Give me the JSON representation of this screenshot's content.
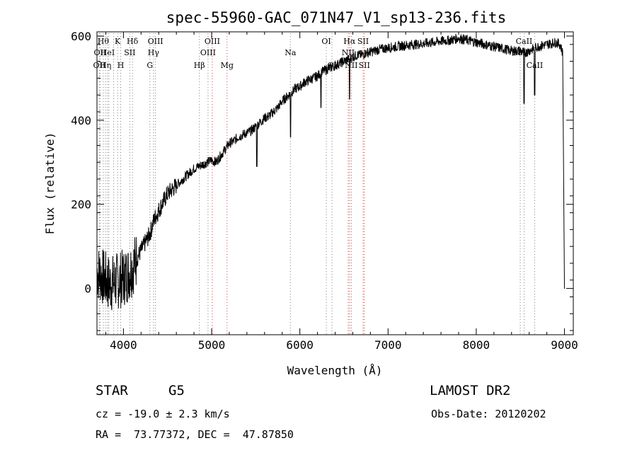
{
  "chart_data": {
    "type": "line",
    "title": "spec-55960-GAC_071N47_V1_sp13-236.fits",
    "xlabel": "Wavelength (Å)",
    "ylabel": "Flux (relative)",
    "xlim": [
      3700,
      9100
    ],
    "ylim": [
      -110,
      610
    ],
    "xticks": [
      4000,
      5000,
      6000,
      7000,
      8000,
      9000
    ],
    "yticks": [
      0,
      200,
      400,
      600
    ],
    "grid": false,
    "series": [
      {
        "color": "#000000",
        "x": [
          3700,
          3750,
          3800,
          3850,
          3900,
          3950,
          4000,
          4050,
          4100,
          4150,
          4200,
          4250,
          4300,
          4350,
          4400,
          4450,
          4500,
          4550,
          4600,
          4650,
          4700,
          4750,
          4800,
          4850,
          4900,
          4950,
          5000,
          5050,
          5100,
          5150,
          5200,
          5250,
          5300,
          5350,
          5400,
          5450,
          5500,
          5550,
          5600,
          5650,
          5700,
          5750,
          5800,
          5850,
          5900,
          5950,
          6000,
          6050,
          6100,
          6150,
          6200,
          6250,
          6300,
          6350,
          6400,
          6450,
          6500,
          6550,
          6600,
          6650,
          6700,
          6750,
          6800,
          6850,
          6900,
          6950,
          7000,
          7100,
          7200,
          7300,
          7400,
          7500,
          7600,
          7700,
          7800,
          7900,
          8000,
          8100,
          8200,
          8300,
          8400,
          8500,
          8550,
          8600,
          8650,
          8700,
          8800,
          8900,
          8950,
          8980,
          9000
        ],
        "y": [
          40,
          30,
          20,
          10,
          15,
          20,
          25,
          35,
          50,
          70,
          90,
          110,
          130,
          165,
          185,
          205,
          225,
          235,
          245,
          255,
          265,
          275,
          285,
          290,
          295,
          300,
          305,
          300,
          315,
          330,
          345,
          350,
          360,
          365,
          370,
          375,
          385,
          395,
          405,
          410,
          420,
          430,
          445,
          455,
          465,
          475,
          480,
          490,
          495,
          500,
          505,
          515,
          520,
          525,
          530,
          535,
          540,
          545,
          550,
          555,
          555,
          560,
          562,
          565,
          568,
          570,
          572,
          575,
          578,
          580,
          582,
          585,
          588,
          590,
          595,
          590,
          585,
          580,
          575,
          570,
          565,
          565,
          560,
          565,
          570,
          575,
          580,
          585,
          580,
          560,
          0
        ]
      }
    ],
    "absorption_lines": [
      {
        "x": 5512,
        "y": 290
      },
      {
        "x": 5895,
        "y": 360
      },
      {
        "x": 6240,
        "y": 430
      },
      {
        "x": 6563,
        "y": 450
      },
      {
        "x": 8542,
        "y": 440
      },
      {
        "x": 8662,
        "y": 460
      }
    ],
    "line_markers": [
      {
        "x": 3727,
        "color": "#808080",
        "label": "OII",
        "row": 3
      },
      {
        "x": 3735,
        "color": "#808080",
        "label": "OII",
        "row": 2
      },
      {
        "x": 3771,
        "color": "#808080",
        "label": "Hθ",
        "row": 1
      },
      {
        "x": 3797,
        "color": "#808080",
        "label": "Hη",
        "row": 3
      },
      {
        "x": 3820,
        "color": "#808080",
        "label": "HeI",
        "row": 2
      },
      {
        "x": 3835,
        "color": "#808080",
        "label": "",
        "row": 0
      },
      {
        "x": 3889,
        "color": "#808080",
        "label": "",
        "row": 0
      },
      {
        "x": 3934,
        "color": "#808080",
        "label": "K",
        "row": 1
      },
      {
        "x": 3969,
        "color": "#808080",
        "label": "H",
        "row": 3
      },
      {
        "x": 4072,
        "color": "#808080",
        "label": "SII",
        "row": 2
      },
      {
        "x": 4102,
        "color": "#808080",
        "label": "Hδ",
        "row": 1
      },
      {
        "x": 4300,
        "color": "#808080",
        "label": "G",
        "row": 3
      },
      {
        "x": 4341,
        "color": "#808080",
        "label": "Hγ",
        "row": 2
      },
      {
        "x": 4363,
        "color": "#808080",
        "label": "OIII",
        "row": 1
      },
      {
        "x": 4861,
        "color": "#808080",
        "label": "Hβ",
        "row": 3
      },
      {
        "x": 4959,
        "color": "#808080",
        "label": "OIII",
        "row": 2
      },
      {
        "x": 5007,
        "color": "#d04040",
        "label": "OIII",
        "row": 1
      },
      {
        "x": 5175,
        "color": "#d04040",
        "label": "Mg",
        "row": 3
      },
      {
        "x": 5893,
        "color": "#808080",
        "label": "Na",
        "row": 2
      },
      {
        "x": 6300,
        "color": "#808080",
        "label": "OI",
        "row": 1
      },
      {
        "x": 6364,
        "color": "#808080",
        "label": "OI",
        "row": 3
      },
      {
        "x": 6548,
        "color": "#d04040",
        "label": "NII",
        "row": 2
      },
      {
        "x": 6563,
        "color": "#d04040",
        "label": "Hα",
        "row": 1
      },
      {
        "x": 6583,
        "color": "#d04040",
        "label": "NII",
        "row": 3
      },
      {
        "x": 6717,
        "color": "#d04040",
        "label": "SII",
        "row": 1
      },
      {
        "x": 6731,
        "color": "#d04040",
        "label": "SII",
        "row": 3
      },
      {
        "x": 8498,
        "color": "#808080",
        "label": "CaII",
        "row": 2
      },
      {
        "x": 8542,
        "color": "#808080",
        "label": "CaII",
        "row": 1
      },
      {
        "x": 8662,
        "color": "#808080",
        "label": "CaII",
        "row": 3
      }
    ]
  },
  "info": {
    "class_label": "STAR",
    "subclass": "G5",
    "survey": "LAMOST DR2",
    "redshift": "cz = -19.0 ± 2.3 km/s",
    "obs_date": "Obs-Date: 20120202",
    "coords": "RA =  73.77372, DEC =  47.87850"
  }
}
